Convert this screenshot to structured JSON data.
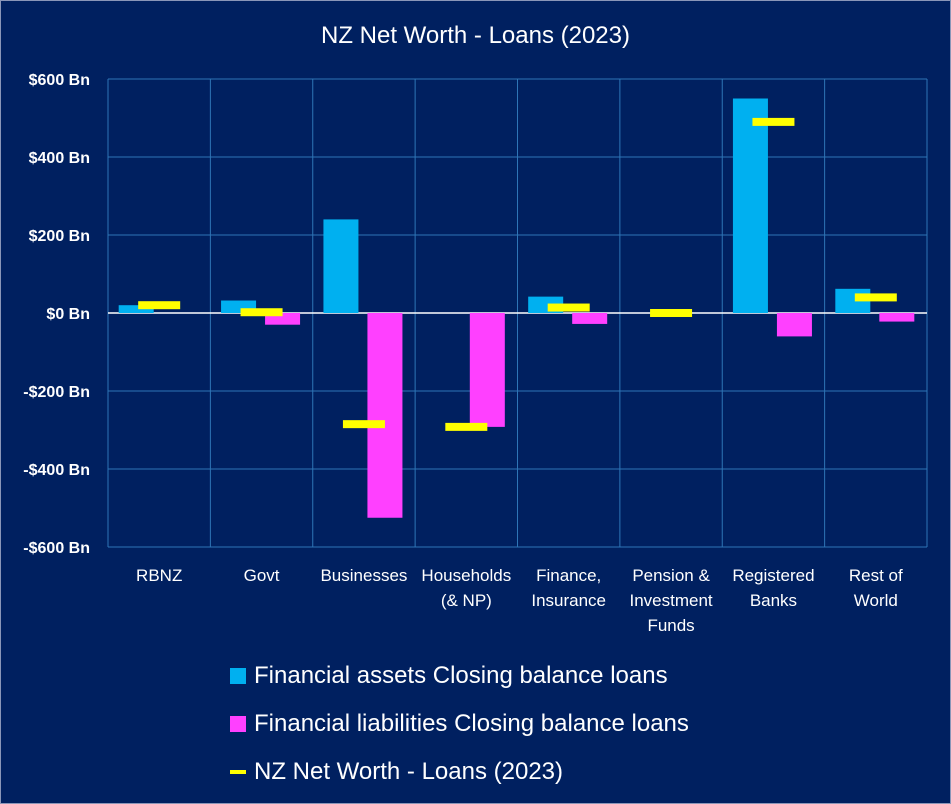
{
  "chart_data": {
    "type": "bar",
    "title": "NZ Net Worth - Loans (2023)",
    "xlabel": "",
    "ylabel": "",
    "ylim": [
      -600,
      600
    ],
    "yticks": [
      600,
      400,
      200,
      0,
      -200,
      -400,
      -600
    ],
    "ytick_labels": [
      "$600 Bn",
      "$400 Bn",
      "$200 Bn",
      "$0 Bn",
      "-$200 Bn",
      "-$400 Bn",
      "-$600 Bn"
    ],
    "categories": [
      [
        "RBNZ"
      ],
      [
        "Govt"
      ],
      [
        "Businesses"
      ],
      [
        "Households",
        "(& NP)"
      ],
      [
        "Finance,",
        "Insurance"
      ],
      [
        "Pension &",
        "Investment",
        "Funds"
      ],
      [
        "Registered",
        "Banks"
      ],
      [
        "Rest of",
        "World"
      ]
    ],
    "series": [
      {
        "name": "Financial assets Closing balance loans",
        "type": "bar",
        "color": "#00b0f0",
        "values": [
          20,
          32,
          240,
          0,
          42,
          0,
          550,
          62
        ]
      },
      {
        "name": "Financial liabilities Closing balance loans",
        "type": "bar",
        "color": "#ff40ff",
        "values": [
          0,
          -30,
          -525,
          -292,
          -28,
          0,
          -60,
          -22
        ]
      },
      {
        "name": "NZ Net Worth - Loans (2023)",
        "type": "marker",
        "color": "#ffff00",
        "values": [
          20,
          2,
          -285,
          -292,
          14,
          0,
          490,
          40
        ]
      }
    ],
    "legend_position": "bottom",
    "grid": true
  }
}
